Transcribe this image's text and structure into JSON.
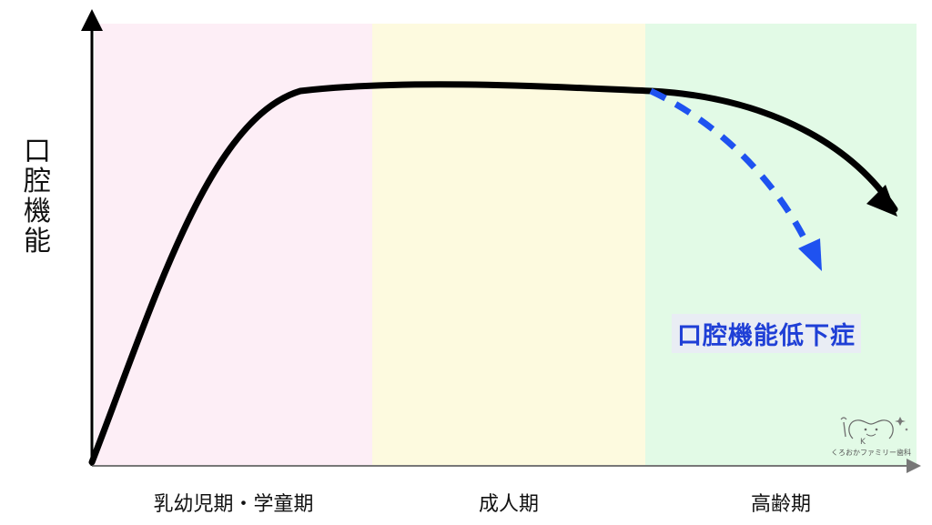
{
  "y_axis_label": "口\n腔\n機\n能",
  "stages": [
    {
      "label": "乳幼児期・学童期",
      "color": "#fdeef6"
    },
    {
      "label": "成人期",
      "color": "#fdfadf"
    },
    {
      "label": "高齢期",
      "color": "#e2fae6"
    }
  ],
  "callout": {
    "label": "口腔機能低下症",
    "color": "#1f3fd6"
  },
  "curves": {
    "normal": {
      "color": "#000000",
      "style": "solid"
    },
    "decline": {
      "color": "#1f52f0",
      "style": "dashed"
    }
  },
  "logo": {
    "text": "くろおかファミリー歯科"
  }
}
